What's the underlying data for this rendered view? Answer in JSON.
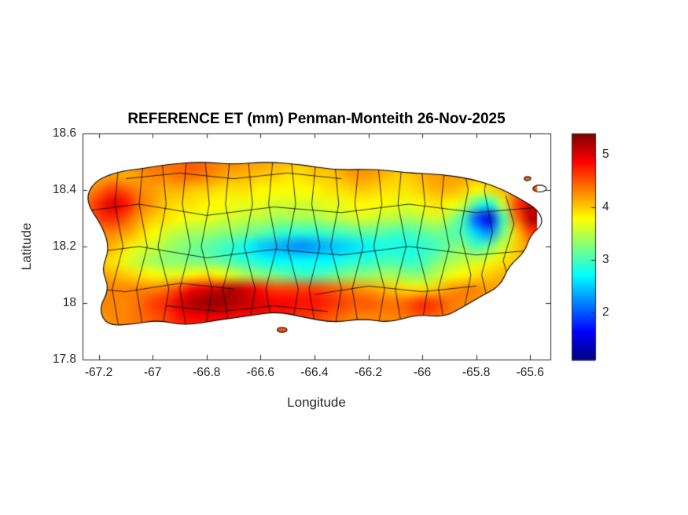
{
  "chart_data": {
    "type": "heatmap",
    "title": "REFERENCE ET (mm) Penman-Monteith 26-Nov-2025",
    "xlabel": "Longitude",
    "ylabel": "Latitude",
    "x_range": [
      -67.26,
      -65.525
    ],
    "y_range": [
      17.8,
      18.6
    ],
    "x_ticks": [
      -67.2,
      -67.0,
      -66.8,
      -66.6,
      -66.4,
      -66.2,
      -66.0,
      -65.8,
      -65.6
    ],
    "x_tick_labels": [
      "-67.2",
      "-67",
      "-66.8",
      "-66.6",
      "-66.4",
      "-66.2",
      "-66",
      "-65.8",
      "-65.6"
    ],
    "y_ticks": [
      17.8,
      18.0,
      18.2,
      18.4,
      18.6
    ],
    "y_tick_labels": [
      "17.8",
      "18",
      "18.2",
      "18.4",
      "18.6"
    ],
    "colormap": "jet",
    "color_range": [
      1.1,
      5.4
    ],
    "colorbar": {
      "ticks": [
        2,
        3,
        4,
        5
      ],
      "tick_labels": [
        "2",
        "3",
        "4",
        "5"
      ]
    },
    "grid": {
      "lon_start": -67.25,
      "lon_step": 0.05,
      "lat_start": 18.55,
      "lat_step": -0.05,
      "values": [
        [
          4.2,
          4.2,
          4.2,
          4.3,
          4.3,
          4.3,
          4.3,
          4.3,
          4.3,
          4.3,
          4.2,
          4.2,
          4.2,
          4.2,
          4.1,
          4.1,
          4.1,
          4.1,
          4.1,
          4.2,
          4.2,
          4.2,
          4.2,
          4.1,
          4.1,
          4.2,
          4.2,
          4.3,
          4.3,
          4.2,
          4.2,
          4.2,
          4.3,
          4.3
        ],
        [
          4.2,
          4.3,
          4.3,
          4.3,
          4.4,
          4.4,
          4.4,
          4.4,
          4.5,
          4.4,
          4.3,
          4.3,
          4.2,
          4.2,
          4.1,
          4.1,
          4.0,
          4.1,
          4.1,
          4.2,
          4.3,
          4.3,
          4.2,
          4.1,
          4.1,
          4.2,
          4.2,
          4.3,
          4.3,
          4.2,
          4.2,
          4.2,
          4.3,
          4.3
        ],
        [
          4.0,
          4.1,
          4.2,
          4.1,
          4.2,
          4.3,
          4.3,
          4.4,
          4.4,
          4.3,
          4.2,
          4.1,
          4.1,
          4.0,
          4.0,
          3.9,
          3.9,
          4.0,
          4.0,
          4.1,
          4.2,
          4.2,
          4.1,
          4.0,
          4.0,
          4.1,
          4.2,
          4.2,
          4.2,
          4.1,
          4.1,
          4.2,
          4.3,
          4.4
        ],
        [
          4.2,
          4.4,
          4.6,
          4.5,
          4.3,
          4.2,
          4.1,
          4.1,
          4.0,
          4.0,
          3.9,
          3.9,
          3.9,
          3.8,
          3.8,
          3.8,
          3.8,
          3.8,
          3.9,
          3.9,
          4.0,
          4.0,
          3.9,
          3.9,
          3.9,
          4.0,
          4.1,
          4.1,
          4.0,
          3.8,
          3.9,
          4.1,
          4.3,
          4.5
        ],
        [
          4.4,
          4.7,
          5.0,
          4.8,
          4.4,
          4.2,
          4.0,
          3.9,
          3.9,
          3.8,
          3.8,
          3.7,
          3.7,
          3.7,
          3.6,
          3.6,
          3.6,
          3.6,
          3.7,
          3.7,
          3.8,
          3.8,
          3.8,
          3.7,
          3.7,
          3.8,
          3.9,
          3.8,
          3.6,
          3.0,
          2.8,
          3.6,
          4.6,
          5.0
        ],
        [
          4.3,
          4.6,
          4.7,
          4.5,
          4.2,
          4.0,
          3.9,
          3.8,
          3.7,
          3.7,
          3.6,
          3.6,
          3.5,
          3.5,
          3.4,
          3.4,
          3.4,
          3.4,
          3.5,
          3.5,
          3.6,
          3.6,
          3.5,
          3.5,
          3.4,
          3.5,
          3.6,
          3.4,
          3.0,
          2.0,
          1.5,
          3.0,
          4.4,
          5.2
        ],
        [
          4.2,
          4.3,
          4.3,
          4.2,
          4.0,
          3.8,
          3.6,
          3.5,
          3.4,
          3.4,
          3.3,
          3.3,
          3.2,
          3.1,
          3.0,
          2.9,
          2.9,
          2.9,
          3.0,
          3.0,
          3.1,
          3.1,
          3.1,
          3.0,
          3.0,
          3.1,
          3.2,
          3.1,
          3.0,
          2.5,
          2.2,
          3.2,
          4.0,
          4.6
        ],
        [
          4.2,
          4.2,
          4.1,
          3.9,
          3.7,
          3.6,
          3.4,
          3.3,
          3.2,
          3.1,
          3.0,
          2.9,
          2.7,
          2.5,
          2.4,
          2.3,
          2.2,
          2.3,
          2.4,
          2.5,
          2.6,
          2.7,
          2.8,
          2.8,
          2.8,
          2.9,
          3.0,
          3.2,
          3.3,
          3.0,
          3.2,
          3.6,
          4.0,
          4.2
        ],
        [
          4.1,
          4.0,
          3.9,
          3.7,
          3.5,
          3.4,
          3.3,
          3.3,
          3.2,
          3.2,
          3.1,
          3.0,
          2.9,
          2.8,
          2.7,
          2.7,
          2.7,
          2.7,
          2.7,
          2.8,
          2.9,
          2.9,
          3.0,
          3.0,
          2.9,
          3.0,
          3.2,
          3.4,
          3.5,
          3.6,
          3.7,
          3.9,
          4.0,
          4.1
        ],
        [
          4.2,
          4.2,
          4.1,
          4.0,
          3.9,
          3.8,
          3.7,
          3.7,
          3.8,
          3.9,
          3.8,
          3.6,
          3.4,
          3.3,
          3.2,
          3.1,
          3.0,
          3.0,
          3.1,
          3.2,
          3.3,
          3.3,
          3.4,
          3.4,
          3.3,
          3.3,
          3.5,
          3.7,
          3.8,
          3.9,
          4.0,
          4.1,
          4.1,
          4.1
        ],
        [
          4.3,
          4.3,
          4.3,
          4.3,
          4.3,
          4.3,
          4.4,
          4.6,
          4.9,
          5.0,
          5.1,
          5.2,
          5.0,
          4.8,
          4.6,
          4.6,
          4.6,
          4.6,
          4.5,
          4.4,
          4.3,
          4.2,
          4.1,
          4.0,
          3.9,
          3.9,
          4.0,
          4.2,
          4.3,
          4.3,
          4.2,
          4.2,
          4.1,
          4.1
        ],
        [
          4.2,
          4.3,
          4.3,
          4.3,
          4.4,
          4.6,
          4.7,
          5.0,
          5.2,
          5.3,
          5.3,
          5.2,
          5.1,
          5.0,
          4.9,
          4.9,
          4.8,
          4.8,
          4.7,
          4.6,
          4.5,
          4.5,
          4.4,
          4.4,
          4.5,
          4.7,
          4.6,
          4.4,
          4.3,
          4.2,
          4.1,
          4.0,
          4.0,
          4.0
        ],
        [
          4.2,
          4.2,
          4.3,
          4.3,
          4.4,
          4.5,
          4.6,
          4.8,
          4.9,
          4.9,
          4.9,
          4.8,
          4.8,
          4.8,
          4.7,
          4.7,
          4.6,
          4.6,
          4.5,
          4.4,
          4.3,
          4.3,
          4.3,
          4.3,
          4.4,
          4.5,
          4.4,
          4.3,
          4.2,
          4.1,
          4.0,
          4.0,
          4.0,
          4.0
        ],
        [
          4.2,
          4.2,
          4.2,
          4.3,
          4.3,
          4.4,
          4.5,
          4.6,
          4.6,
          4.6,
          4.6,
          4.6,
          4.6,
          4.6,
          4.5,
          4.5,
          4.5,
          4.4,
          4.4,
          4.3,
          4.3,
          4.2,
          4.2,
          4.2,
          4.3,
          4.3,
          4.3,
          4.2,
          4.2,
          4.1,
          4.0,
          4.0,
          4.0,
          4.0
        ]
      ]
    },
    "island_outline": [
      [
        -67.25,
        18.36
      ],
      [
        -67.22,
        18.43
      ],
      [
        -67.13,
        18.465
      ],
      [
        -67.04,
        18.475
      ],
      [
        -66.95,
        18.49
      ],
      [
        -66.82,
        18.5
      ],
      [
        -66.7,
        18.49
      ],
      [
        -66.58,
        18.5
      ],
      [
        -66.45,
        18.49
      ],
      [
        -66.32,
        18.47
      ],
      [
        -66.18,
        18.475
      ],
      [
        -66.05,
        18.46
      ],
      [
        -65.93,
        18.455
      ],
      [
        -65.82,
        18.44
      ],
      [
        -65.72,
        18.41
      ],
      [
        -65.64,
        18.37
      ],
      [
        -65.57,
        18.33
      ],
      [
        -65.55,
        18.28
      ],
      [
        -65.6,
        18.24
      ],
      [
        -65.62,
        18.18
      ],
      [
        -65.68,
        18.13
      ],
      [
        -65.71,
        18.06
      ],
      [
        -65.79,
        18.02
      ],
      [
        -65.86,
        17.98
      ],
      [
        -65.92,
        17.95
      ],
      [
        -66.02,
        17.96
      ],
      [
        -66.12,
        17.93
      ],
      [
        -66.22,
        17.945
      ],
      [
        -66.33,
        17.93
      ],
      [
        -66.44,
        17.95
      ],
      [
        -66.54,
        17.97
      ],
      [
        -66.64,
        17.955
      ],
      [
        -66.76,
        17.94
      ],
      [
        -66.88,
        17.92
      ],
      [
        -66.98,
        17.94
      ],
      [
        -67.07,
        17.925
      ],
      [
        -67.17,
        17.92
      ],
      [
        -67.2,
        17.98
      ],
      [
        -67.16,
        18.05
      ],
      [
        -67.19,
        18.12
      ],
      [
        -67.16,
        18.19
      ],
      [
        -67.185,
        18.27
      ]
    ],
    "islets": [
      {
        "lon": -66.52,
        "lat": 17.905,
        "rx": 0.018,
        "ry": 0.008
      },
      {
        "lon": -65.565,
        "lat": 18.405,
        "rx": 0.025,
        "ry": 0.012
      },
      {
        "lon": -65.61,
        "lat": 18.44,
        "rx": 0.012,
        "ry": 0.007
      }
    ],
    "boundaries": [
      [
        [
          -67.12,
          17.88
        ],
        [
          -67.15,
          18.05
        ],
        [
          -67.11,
          18.2
        ],
        [
          -67.14,
          18.35
        ],
        [
          -67.12,
          18.55
        ]
      ],
      [
        [
          -67.03,
          17.88
        ],
        [
          -67.06,
          18.05
        ],
        [
          -67.02,
          18.2
        ],
        [
          -67.05,
          18.35
        ],
        [
          -67.03,
          18.55
        ]
      ],
      [
        [
          -66.97,
          17.88
        ],
        [
          -66.94,
          18.05
        ],
        [
          -66.98,
          18.2
        ],
        [
          -66.95,
          18.35
        ],
        [
          -66.97,
          18.55
        ]
      ],
      [
        [
          -66.87,
          17.88
        ],
        [
          -66.9,
          18.05
        ],
        [
          -66.86,
          18.2
        ],
        [
          -66.89,
          18.35
        ],
        [
          -66.87,
          18.55
        ]
      ],
      [
        [
          -66.81,
          17.88
        ],
        [
          -66.78,
          18.05
        ],
        [
          -66.82,
          18.2
        ],
        [
          -66.79,
          18.35
        ],
        [
          -66.81,
          18.55
        ]
      ],
      [
        [
          -66.71,
          17.88
        ],
        [
          -66.74,
          18.05
        ],
        [
          -66.7,
          18.2
        ],
        [
          -66.73,
          18.35
        ],
        [
          -66.71,
          18.55
        ]
      ],
      [
        [
          -66.65,
          17.88
        ],
        [
          -66.62,
          18.05
        ],
        [
          -66.66,
          18.2
        ],
        [
          -66.63,
          18.35
        ],
        [
          -66.65,
          18.55
        ]
      ],
      [
        [
          -66.55,
          17.88
        ],
        [
          -66.58,
          18.05
        ],
        [
          -66.54,
          18.2
        ],
        [
          -66.57,
          18.35
        ],
        [
          -66.55,
          18.55
        ]
      ],
      [
        [
          -66.49,
          17.88
        ],
        [
          -66.46,
          18.05
        ],
        [
          -66.5,
          18.2
        ],
        [
          -66.47,
          18.35
        ],
        [
          -66.49,
          18.55
        ]
      ],
      [
        [
          -66.39,
          17.88
        ],
        [
          -66.42,
          18.05
        ],
        [
          -66.38,
          18.2
        ],
        [
          -66.41,
          18.35
        ],
        [
          -66.39,
          18.55
        ]
      ],
      [
        [
          -66.33,
          17.88
        ],
        [
          -66.3,
          18.05
        ],
        [
          -66.34,
          18.2
        ],
        [
          -66.31,
          18.35
        ],
        [
          -66.33,
          18.55
        ]
      ],
      [
        [
          -66.23,
          17.88
        ],
        [
          -66.26,
          18.05
        ],
        [
          -66.22,
          18.2
        ],
        [
          -66.25,
          18.35
        ],
        [
          -66.23,
          18.55
        ]
      ],
      [
        [
          -66.17,
          17.88
        ],
        [
          -66.14,
          18.05
        ],
        [
          -66.18,
          18.2
        ],
        [
          -66.15,
          18.35
        ],
        [
          -66.17,
          18.55
        ]
      ],
      [
        [
          -66.07,
          17.88
        ],
        [
          -66.1,
          18.05
        ],
        [
          -66.06,
          18.2
        ],
        [
          -66.09,
          18.35
        ],
        [
          -66.07,
          18.55
        ]
      ],
      [
        [
          -66.01,
          17.88
        ],
        [
          -65.98,
          18.05
        ],
        [
          -66.02,
          18.2
        ],
        [
          -65.99,
          18.35
        ],
        [
          -66.01,
          18.55
        ]
      ],
      [
        [
          -65.91,
          17.88
        ],
        [
          -65.94,
          18.05
        ],
        [
          -65.9,
          18.2
        ],
        [
          -65.93,
          18.35
        ],
        [
          -65.91,
          18.55
        ]
      ],
      [
        [
          -65.85,
          17.95
        ],
        [
          -65.82,
          18.1
        ],
        [
          -65.86,
          18.25
        ],
        [
          -65.83,
          18.4
        ],
        [
          -65.85,
          18.5
        ]
      ],
      [
        [
          -65.75,
          17.98
        ],
        [
          -65.78,
          18.1
        ],
        [
          -65.74,
          18.25
        ],
        [
          -65.77,
          18.4
        ],
        [
          -65.75,
          18.48
        ]
      ],
      [
        [
          -65.67,
          18.05
        ],
        [
          -65.7,
          18.15
        ],
        [
          -65.66,
          18.28
        ],
        [
          -65.69,
          18.38
        ]
      ],
      [
        [
          -67.3,
          18.32
        ],
        [
          -67.05,
          18.35
        ],
        [
          -66.8,
          18.31
        ],
        [
          -66.55,
          18.34
        ],
        [
          -66.3,
          18.32
        ],
        [
          -66.05,
          18.35
        ],
        [
          -65.8,
          18.32
        ],
        [
          -65.55,
          18.34
        ]
      ],
      [
        [
          -67.3,
          18.17
        ],
        [
          -67.05,
          18.2
        ],
        [
          -66.8,
          18.16
        ],
        [
          -66.55,
          18.19
        ],
        [
          -66.3,
          18.17
        ],
        [
          -66.05,
          18.2
        ],
        [
          -65.8,
          18.17
        ],
        [
          -65.55,
          18.19
        ]
      ],
      [
        [
          -67.3,
          18.06
        ],
        [
          -67.1,
          18.04
        ],
        [
          -66.9,
          18.07
        ],
        [
          -66.7,
          18.05
        ]
      ],
      [
        [
          -66.4,
          18.03
        ],
        [
          -66.2,
          18.06
        ],
        [
          -66.0,
          18.04
        ],
        [
          -65.8,
          18.06
        ]
      ],
      [
        [
          -67.1,
          18.44
        ],
        [
          -66.9,
          18.46
        ],
        [
          -66.7,
          18.44
        ],
        [
          -66.5,
          18.46
        ],
        [
          -66.3,
          18.44
        ]
      ],
      [
        [
          -66.95,
          17.99
        ],
        [
          -66.75,
          17.97
        ],
        [
          -66.55,
          17.99
        ],
        [
          -66.35,
          17.97
        ]
      ]
    ]
  }
}
